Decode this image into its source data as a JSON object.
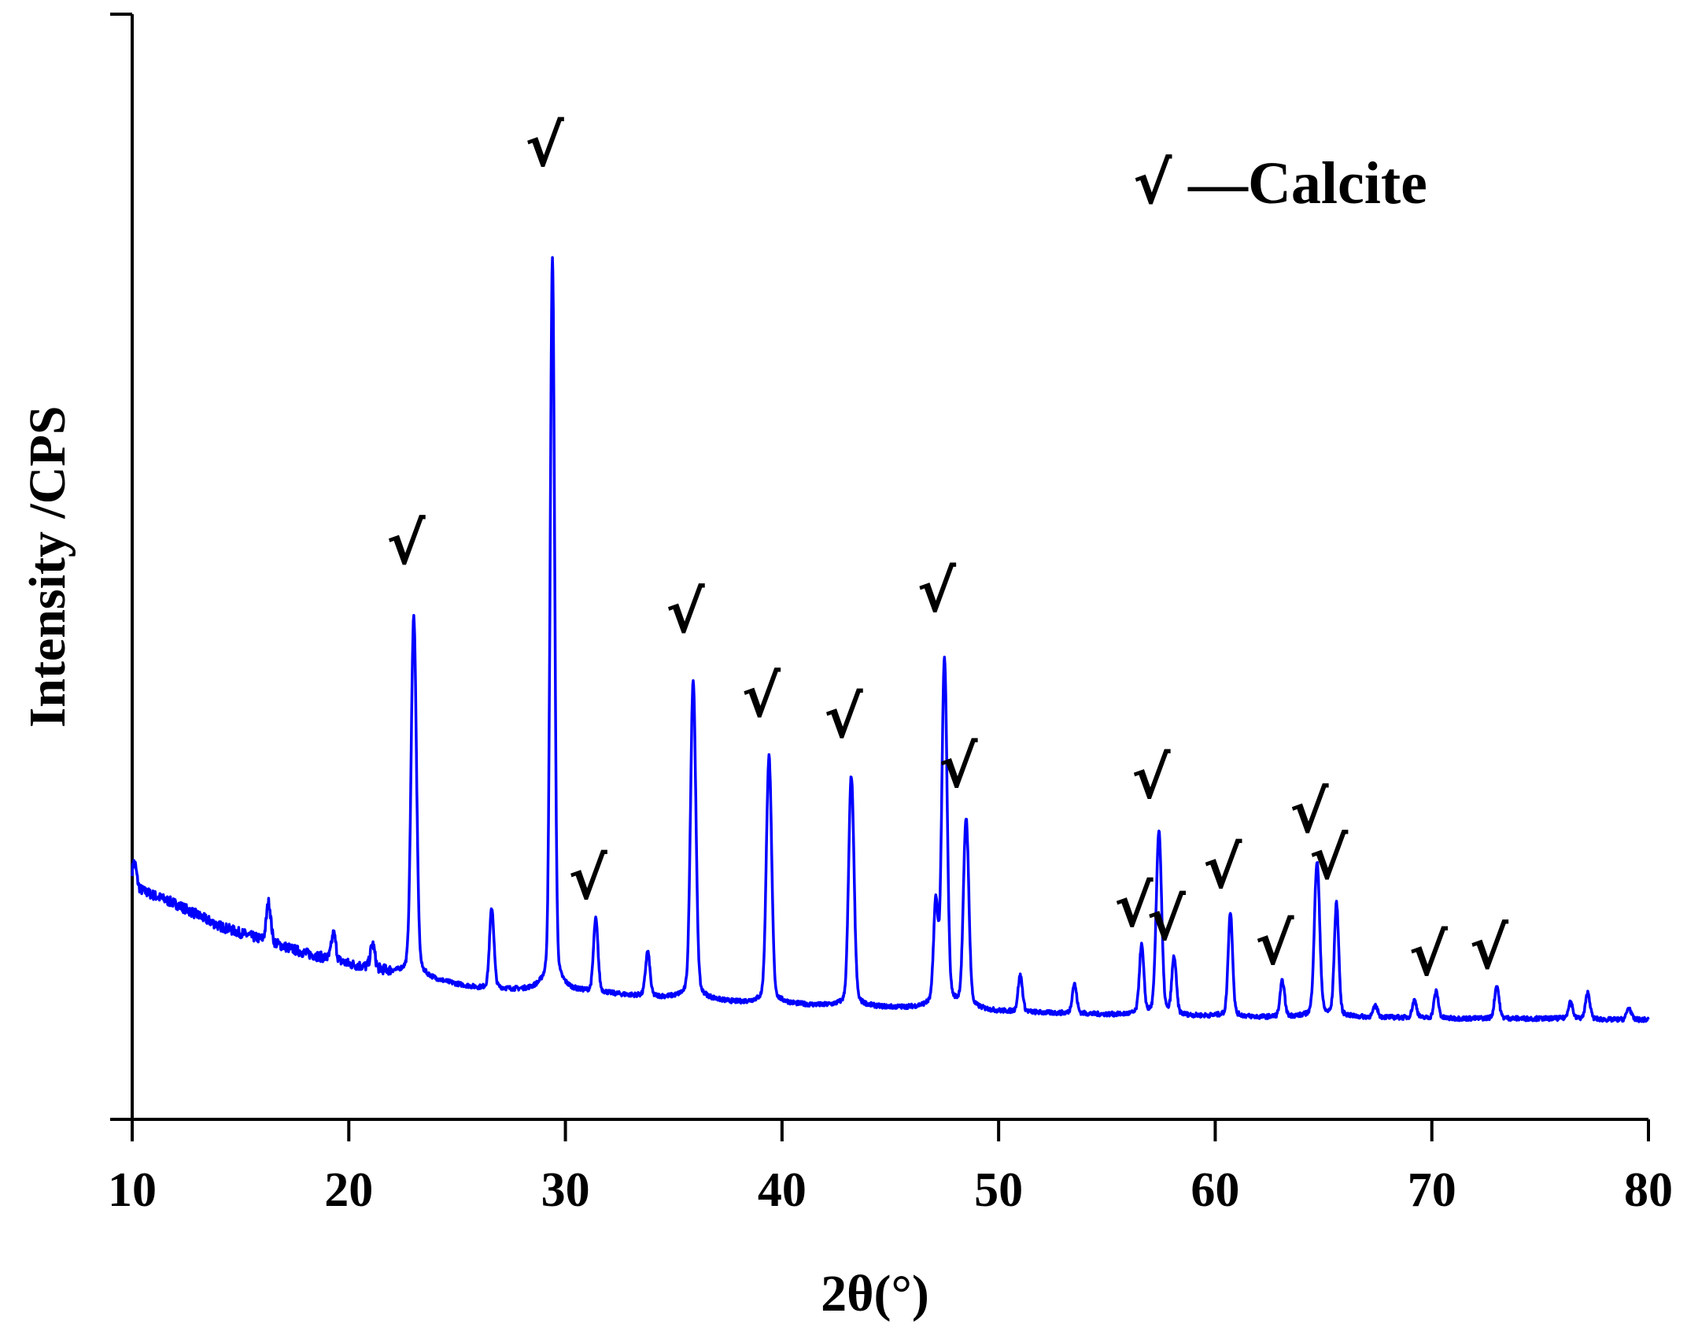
{
  "chart_data": {
    "type": "line",
    "xlabel": "2θ(°)",
    "ylabel": "Intensity /CPS",
    "xlim": [
      10,
      80
    ],
    "ylim": [
      0,
      1000
    ],
    "x_ticks": [
      "10",
      "20",
      "30",
      "40",
      "50",
      "60",
      "70",
      "80"
    ],
    "y_ticks_labeled": false,
    "grid": false,
    "legend": {
      "symbol": "√",
      "text": "—Calcite",
      "placement": "top-right"
    },
    "series": [
      {
        "color": "#0000ff",
        "baseline": [
          [
            10.0,
            210
          ],
          [
            12,
            195
          ],
          [
            14,
            175
          ],
          [
            16,
            162
          ],
          [
            18,
            150
          ],
          [
            20,
            140
          ],
          [
            22,
            132
          ],
          [
            24,
            125
          ],
          [
            26,
            118
          ],
          [
            28,
            116
          ],
          [
            30,
            115
          ],
          [
            32,
            113
          ],
          [
            34,
            110
          ],
          [
            36,
            108
          ],
          [
            38,
            105
          ],
          [
            40,
            104
          ],
          [
            42,
            102
          ],
          [
            44,
            101
          ],
          [
            46,
            100
          ],
          [
            48,
            99
          ],
          [
            50,
            97
          ],
          [
            52,
            96
          ],
          [
            54,
            95
          ],
          [
            56,
            94
          ],
          [
            58,
            93
          ],
          [
            60,
            93
          ],
          [
            62,
            92
          ],
          [
            64,
            92
          ],
          [
            66,
            92
          ],
          [
            68,
            92
          ],
          [
            70,
            91
          ],
          [
            72,
            91
          ],
          [
            74,
            91
          ],
          [
            76,
            91
          ],
          [
            78,
            90
          ],
          [
            80,
            90
          ]
        ],
        "peaks": [
          {
            "x": 10.1,
            "y": 235
          },
          {
            "x": 16.3,
            "y": 200
          },
          {
            "x": 19.3,
            "y": 170
          },
          {
            "x": 21.1,
            "y": 160
          },
          {
            "x": 23.0,
            "y": 490
          },
          {
            "x": 26.6,
            "y": 198
          },
          {
            "x": 29.4,
            "y": 850
          },
          {
            "x": 31.4,
            "y": 187
          },
          {
            "x": 33.8,
            "y": 155
          },
          {
            "x": 35.9,
            "y": 428
          },
          {
            "x": 39.4,
            "y": 352
          },
          {
            "x": 43.2,
            "y": 333
          },
          {
            "x": 47.1,
            "y": 200
          },
          {
            "x": 47.5,
            "y": 447
          },
          {
            "x": 48.5,
            "y": 288
          },
          {
            "x": 51.0,
            "y": 133
          },
          {
            "x": 53.5,
            "y": 125
          },
          {
            "x": 56.6,
            "y": 162
          },
          {
            "x": 57.4,
            "y": 278
          },
          {
            "x": 58.1,
            "y": 150
          },
          {
            "x": 60.7,
            "y": 197
          },
          {
            "x": 63.1,
            "y": 128
          },
          {
            "x": 64.7,
            "y": 247
          },
          {
            "x": 65.6,
            "y": 205
          },
          {
            "x": 67.4,
            "y": 103
          },
          {
            "x": 69.2,
            "y": 109
          },
          {
            "x": 70.2,
            "y": 118
          },
          {
            "x": 73.0,
            "y": 124
          },
          {
            "x": 76.4,
            "y": 108
          },
          {
            "x": 77.2,
            "y": 117
          },
          {
            "x": 79.1,
            "y": 102
          }
        ]
      }
    ],
    "annotations": [
      {
        "text": "√",
        "x": 23.0,
        "y": 490
      },
      {
        "text": "√",
        "x": 29.4,
        "y": 850
      },
      {
        "text": "√",
        "x": 31.4,
        "y": 187
      },
      {
        "text": "√",
        "x": 35.9,
        "y": 428
      },
      {
        "text": "√",
        "x": 39.4,
        "y": 352
      },
      {
        "text": "√",
        "x": 43.2,
        "y": 333
      },
      {
        "text": "√",
        "x": 47.5,
        "y": 447
      },
      {
        "text": "√",
        "x": 48.5,
        "y": 288
      },
      {
        "text": "√",
        "x": 56.6,
        "y": 162
      },
      {
        "text": "√",
        "x": 57.4,
        "y": 278
      },
      {
        "text": "√",
        "x": 58.1,
        "y": 150
      },
      {
        "text": "√",
        "x": 60.7,
        "y": 197
      },
      {
        "text": "√",
        "x": 63.1,
        "y": 128
      },
      {
        "text": "√",
        "x": 64.7,
        "y": 247
      },
      {
        "text": "√",
        "x": 65.6,
        "y": 205
      },
      {
        "text": "√",
        "x": 70.2,
        "y": 118
      },
      {
        "text": "√",
        "x": 73.0,
        "y": 124
      }
    ]
  }
}
